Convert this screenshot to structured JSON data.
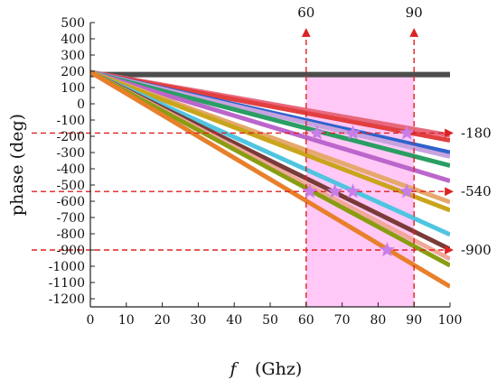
{
  "chart_data": {
    "type": "line",
    "xlabel": "f",
    "xlabel_unit": "(Ghz)",
    "ylabel": "phase  (deg)",
    "xlim": [
      0,
      100
    ],
    "ylim": [
      -1250,
      500
    ],
    "x_ticks": [
      0,
      10,
      20,
      30,
      40,
      50,
      60,
      70,
      80,
      90,
      100
    ],
    "y_ticks": [
      500,
      400,
      300,
      200,
      100,
      0,
      -100,
      -200,
      -300,
      -400,
      -500,
      -600,
      -700,
      -800,
      -900,
      -1000,
      -1100,
      -1200
    ],
    "grid": false,
    "shaded_band": {
      "x_start": 60,
      "x_end": 90,
      "y_top": 180,
      "color": "#ffc8f6"
    },
    "reference_line": {
      "y": 180,
      "color": "#4a4a4a"
    },
    "vertical_markers": [
      {
        "x": 60,
        "label": "60",
        "color": "#dd2222"
      },
      {
        "x": 90,
        "label": "90",
        "color": "#dd2222"
      }
    ],
    "horizontal_markers": [
      {
        "y": -180,
        "label": "-180",
        "color": "#dd2222"
      },
      {
        "y": -540,
        "label": "-540",
        "color": "#dd2222"
      },
      {
        "y": -900,
        "label": "-900",
        "color": "#dd2222"
      }
    ],
    "series": [
      {
        "color": "#4d4d4d",
        "x": [
          0,
          100
        ],
        "y": [
          180,
          180
        ]
      },
      {
        "color": "#e8687c",
        "x": [
          0,
          100
        ],
        "y": [
          195,
          -195
        ]
      },
      {
        "color": "#e23f3f",
        "x": [
          0,
          100
        ],
        "y": [
          195,
          -225
        ]
      },
      {
        "color": "#2f62cc",
        "x": [
          0,
          100
        ],
        "y": [
          195,
          -300
        ]
      },
      {
        "color": "#c7a3df",
        "x": [
          0,
          100
        ],
        "y": [
          195,
          -325
        ]
      },
      {
        "color": "#2a9e63",
        "x": [
          0,
          100
        ],
        "y": [
          195,
          -380
        ]
      },
      {
        "color": "#bb66cc",
        "x": [
          0,
          100
        ],
        "y": [
          195,
          -475
        ]
      },
      {
        "color": "#e6a86c",
        "x": [
          0,
          100
        ],
        "y": [
          195,
          -605
        ]
      },
      {
        "color": "#c9a51c",
        "x": [
          0,
          100
        ],
        "y": [
          195,
          -655
        ]
      },
      {
        "color": "#4fc5e0",
        "x": [
          0,
          100
        ],
        "y": [
          195,
          -805
        ]
      },
      {
        "color": "#7a3b38",
        "x": [
          0,
          100
        ],
        "y": [
          195,
          -895
        ]
      },
      {
        "color": "#f2a79a",
        "x": [
          0,
          100
        ],
        "y": [
          195,
          -955
        ]
      },
      {
        "color": "#8a9d12",
        "x": [
          0,
          100
        ],
        "y": [
          195,
          -995
        ]
      },
      {
        "color": "#e87f2b",
        "x": [
          0,
          100
        ],
        "y": [
          195,
          -1125
        ]
      }
    ],
    "star_markers": {
      "color": "#c77ee8",
      "points": [
        {
          "x": 63,
          "y": -180
        },
        {
          "x": 73,
          "y": -180
        },
        {
          "x": 88,
          "y": -180
        },
        {
          "x": 61,
          "y": -540
        },
        {
          "x": 68,
          "y": -540
        },
        {
          "x": 73,
          "y": -540
        },
        {
          "x": 88,
          "y": -540
        },
        {
          "x": 82.5,
          "y": -900
        }
      ]
    }
  }
}
